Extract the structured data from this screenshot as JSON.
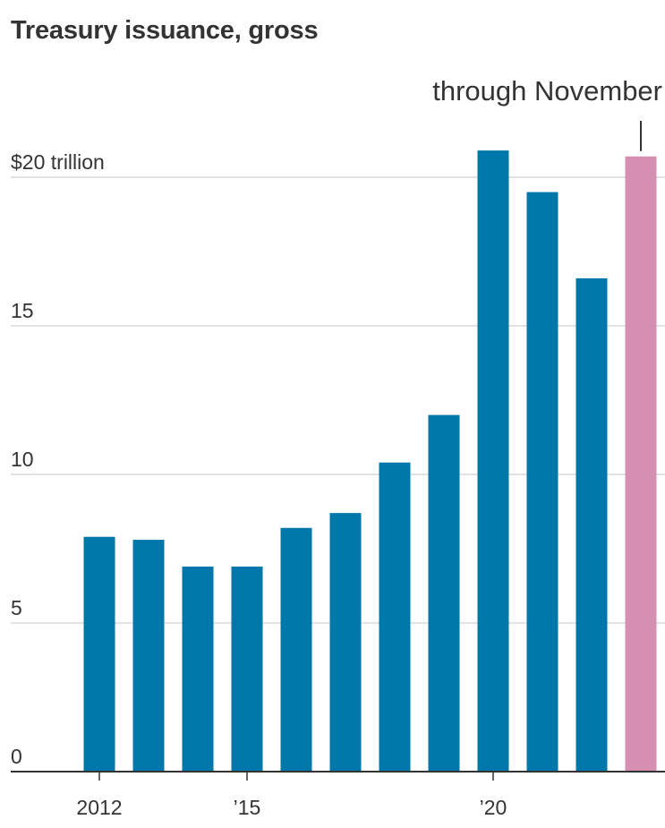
{
  "title": "Treasury issuance, gross",
  "colors": {
    "bar": "#0077AA",
    "highlight": "#D68FB1",
    "grid": "#D9D9D9",
    "axis": "#333333",
    "text": "#333333"
  },
  "chart_data": {
    "type": "bar",
    "title": "Treasury issuance, gross",
    "xlabel": "",
    "ylabel": "",
    "categories": [
      "2012",
      "2013",
      "2014",
      "2015",
      "2016",
      "2017",
      "2018",
      "2019",
      "2020",
      "2021",
      "2022",
      "2023"
    ],
    "values": [
      7.9,
      7.8,
      6.9,
      6.9,
      8.2,
      8.7,
      10.4,
      12.0,
      20.9,
      19.5,
      16.6,
      20.7
    ],
    "highlight_index": 11,
    "ylim": [
      0,
      20
    ],
    "yticks": [
      {
        "value": 20,
        "label": "$20 trillion"
      },
      {
        "value": 15,
        "label": "15"
      },
      {
        "value": 10,
        "label": "10"
      },
      {
        "value": 5,
        "label": "5"
      },
      {
        "value": 0,
        "label": "0"
      }
    ],
    "xticks": [
      {
        "category": "2012",
        "label": "2012"
      },
      {
        "category": "2015",
        "label": "’15"
      },
      {
        "category": "2020",
        "label": "’20"
      }
    ],
    "annotation": {
      "category": "2023",
      "text": "through November"
    },
    "grid": true
  }
}
